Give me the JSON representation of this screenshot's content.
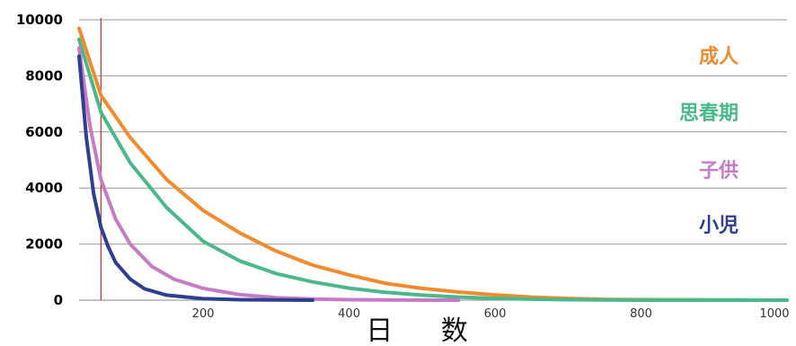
{
  "chart_data": {
    "type": "line",
    "xlabel": "日 数",
    "ylabel": "",
    "xlim": [
      30,
      1000
    ],
    "ylim": [
      0,
      10000
    ],
    "x_ticks": [
      200,
      400,
      600,
      800,
      1000
    ],
    "y_ticks": [
      0,
      2000,
      4000,
      6000,
      8000,
      10000
    ],
    "grid": "horizontal",
    "legend_placement": "right",
    "reference_line": {
      "x": 60,
      "color": "#d62728"
    },
    "series": [
      {
        "name": "成人",
        "color": "#f28a2e",
        "x": [
          30,
          60,
          100,
          150,
          200,
          250,
          300,
          350,
          400,
          450,
          500,
          550,
          600,
          650,
          700,
          750,
          800,
          900,
          1000
        ],
        "y": [
          9700,
          7300,
          5800,
          4300,
          3200,
          2400,
          1750,
          1250,
          900,
          600,
          420,
          290,
          190,
          110,
          60,
          30,
          15,
          5,
          0
        ]
      },
      {
        "name": "思春期",
        "color": "#49b98a",
        "x": [
          30,
          60,
          100,
          150,
          200,
          250,
          300,
          350,
          400,
          450,
          500,
          550,
          600,
          650,
          700,
          750,
          800,
          900,
          1000
        ],
        "y": [
          9300,
          6700,
          4900,
          3300,
          2100,
          1400,
          950,
          650,
          430,
          280,
          180,
          110,
          65,
          35,
          15,
          5,
          0,
          0,
          0
        ]
      },
      {
        "name": "子供",
        "color": "#c67bc4",
        "x": [
          30,
          45,
          60,
          80,
          100,
          130,
          160,
          200,
          250,
          300,
          350,
          400,
          450,
          500,
          550
        ],
        "y": [
          9000,
          6200,
          4300,
          2900,
          2000,
          1200,
          750,
          420,
          200,
          90,
          40,
          15,
          5,
          0,
          0
        ]
      },
      {
        "name": "小児",
        "color": "#2e3f8f",
        "x": [
          30,
          40,
          50,
          60,
          70,
          80,
          100,
          120,
          150,
          200,
          250,
          300,
          350
        ],
        "y": [
          8700,
          5800,
          3800,
          2600,
          1900,
          1350,
          750,
          400,
          180,
          50,
          15,
          5,
          0
        ]
      }
    ]
  }
}
